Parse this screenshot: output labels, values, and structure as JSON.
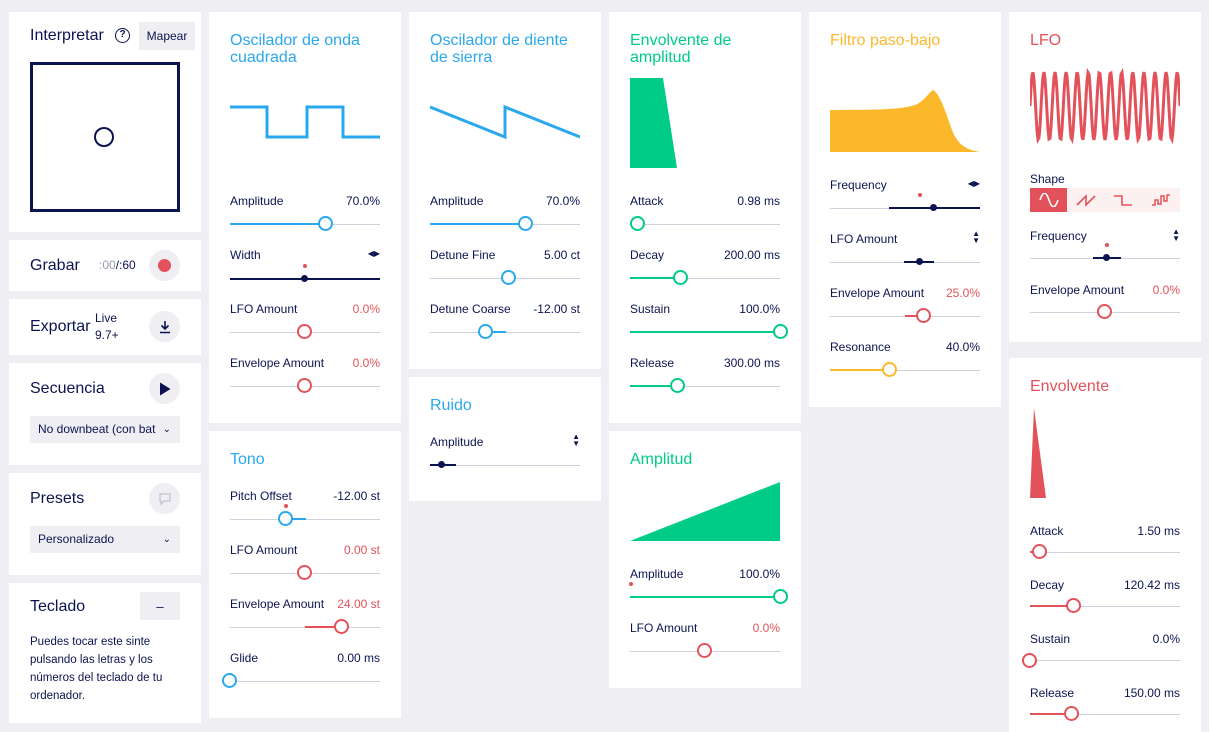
{
  "left": {
    "interpretar": {
      "title": "Interpretar",
      "help_icon": "help-circle-icon",
      "map_button": "Mapear"
    },
    "grabar": {
      "title": "Grabar",
      "time_current": ":00",
      "time_sep": "/",
      "time_total": ":60",
      "record_icon": "record-icon"
    },
    "exportar": {
      "title": "Exportar",
      "badge_line1": "Live",
      "badge_line2": "9.7+",
      "download_icon": "download-icon"
    },
    "secuencia": {
      "title": "Secuencia",
      "play_icon": "play-icon",
      "select_value": "No downbeat (con bat"
    },
    "presets": {
      "title": "Presets",
      "comment_icon": "comment-icon",
      "select_value": "Personalizado"
    },
    "teclado": {
      "title": "Teclado",
      "toggle_label": "–",
      "description": "Puedes tocar este sinte pulsando las letras y los números del teclado de tu ordenador."
    }
  },
  "square_osc": {
    "title": "Oscilador de onda cuadrada",
    "params": [
      {
        "label": "Amplitude",
        "value": "70.0%"
      },
      {
        "label": "Width",
        "value": ""
      },
      {
        "label": "LFO Amount",
        "value": "0.0%"
      },
      {
        "label": "Envelope Amount",
        "value": "0.0%"
      }
    ]
  },
  "tono": {
    "title": "Tono",
    "params": [
      {
        "label": "Pitch Offset",
        "value": "-12.00 st"
      },
      {
        "label": "LFO Amount",
        "value": "0.00 st"
      },
      {
        "label": "Envelope Amount",
        "value": "24.00 st"
      },
      {
        "label": "Glide",
        "value": "0.00 ms"
      }
    ]
  },
  "saw_osc": {
    "title": "Oscilador de diente de sierra",
    "params": [
      {
        "label": "Amplitude",
        "value": "70.0%"
      },
      {
        "label": "Detune Fine",
        "value": "5.00 ct"
      },
      {
        "label": "Detune Coarse",
        "value": "-12.00 st"
      }
    ]
  },
  "ruido": {
    "title": "Ruido",
    "params": [
      {
        "label": "Amplitude",
        "value": ""
      }
    ]
  },
  "amp_env": {
    "title": "Envolvente de amplitud",
    "params": [
      {
        "label": "Attack",
        "value": "0.98 ms"
      },
      {
        "label": "Decay",
        "value": "200.00 ms"
      },
      {
        "label": "Sustain",
        "value": "100.0%"
      },
      {
        "label": "Release",
        "value": "300.00 ms"
      }
    ]
  },
  "amplitud": {
    "title": "Amplitud",
    "params": [
      {
        "label": "Amplitude",
        "value": "100.0%"
      },
      {
        "label": "LFO Amount",
        "value": "0.0%"
      }
    ]
  },
  "filtro": {
    "title": "Filtro paso-bajo",
    "params": [
      {
        "label": "Frequency",
        "value": ""
      },
      {
        "label": "LFO Amount",
        "value": ""
      },
      {
        "label": "Envelope Amount",
        "value": "25.0%"
      },
      {
        "label": "Resonance",
        "value": "40.0%"
      }
    ]
  },
  "lfo": {
    "title": "LFO",
    "shape_label": "Shape",
    "shapes": [
      "sine-wave-icon",
      "saw-wave-icon",
      "square-wave-icon",
      "random-wave-icon"
    ],
    "params": [
      {
        "label": "Frequency",
        "value": ""
      },
      {
        "label": "Envelope Amount",
        "value": "0.0%"
      }
    ]
  },
  "envolvente": {
    "title": "Envolvente",
    "params": [
      {
        "label": "Attack",
        "value": "1.50 ms"
      },
      {
        "label": "Decay",
        "value": "120.42 ms"
      },
      {
        "label": "Sustain",
        "value": "0.0%"
      },
      {
        "label": "Release",
        "value": "150.00 ms"
      }
    ]
  },
  "colors": {
    "blue": "#2aa8ee",
    "green": "#00cc88",
    "yellow": "#fbb82b",
    "red": "#e3525a",
    "navy": "#0b1450"
  }
}
